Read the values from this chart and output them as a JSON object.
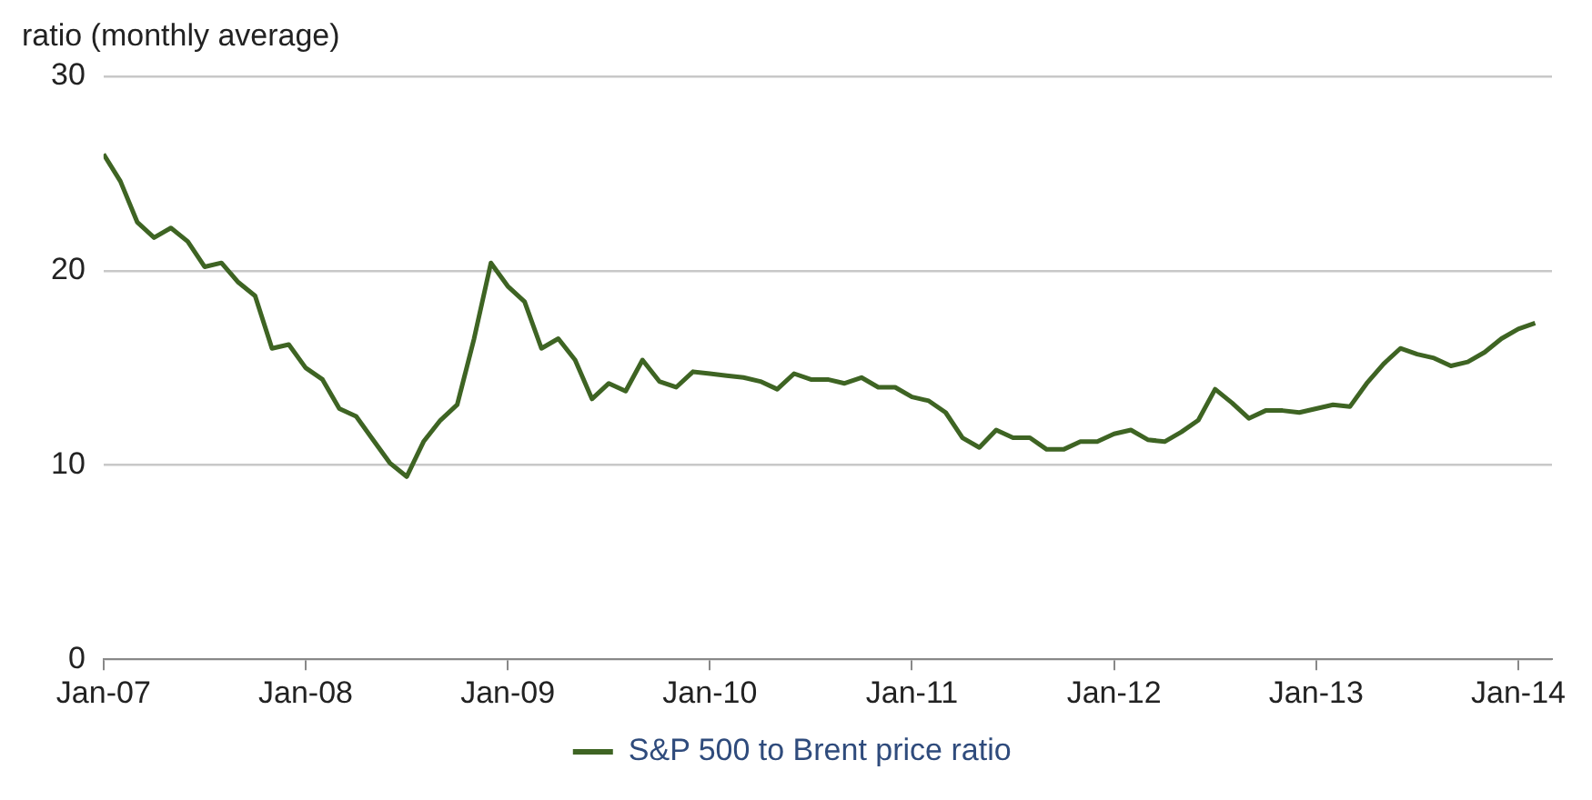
{
  "chart_data": {
    "type": "line",
    "ylabel": "ratio (monthly average)",
    "x": [
      "2007-01",
      "2007-02",
      "2007-03",
      "2007-04",
      "2007-05",
      "2007-06",
      "2007-07",
      "2007-08",
      "2007-09",
      "2007-10",
      "2007-11",
      "2007-12",
      "2008-01",
      "2008-02",
      "2008-03",
      "2008-04",
      "2008-05",
      "2008-06",
      "2008-07",
      "2008-08",
      "2008-09",
      "2008-10",
      "2008-11",
      "2008-12",
      "2009-01",
      "2009-02",
      "2009-03",
      "2009-04",
      "2009-05",
      "2009-06",
      "2009-07",
      "2009-08",
      "2009-09",
      "2009-10",
      "2009-11",
      "2009-12",
      "2010-01",
      "2010-02",
      "2010-03",
      "2010-04",
      "2010-05",
      "2010-06",
      "2010-07",
      "2010-08",
      "2010-09",
      "2010-10",
      "2010-11",
      "2010-12",
      "2011-01",
      "2011-02",
      "2011-03",
      "2011-04",
      "2011-05",
      "2011-06",
      "2011-07",
      "2011-08",
      "2011-09",
      "2011-10",
      "2011-11",
      "2011-12",
      "2012-01",
      "2012-02",
      "2012-03",
      "2012-04",
      "2012-05",
      "2012-06",
      "2012-07",
      "2012-08",
      "2012-09",
      "2012-10",
      "2012-11",
      "2012-12",
      "2013-01",
      "2013-02",
      "2013-03",
      "2013-04",
      "2013-05",
      "2013-06",
      "2013-07",
      "2013-08",
      "2013-09",
      "2013-10",
      "2013-11",
      "2013-12",
      "2014-01",
      "2014-02"
    ],
    "series": [
      {
        "name": "S&P 500 to Brent price ratio",
        "color": "#3e6423",
        "values": [
          26.0,
          24.6,
          22.5,
          21.7,
          22.2,
          21.5,
          20.2,
          20.4,
          19.4,
          18.7,
          16.0,
          16.2,
          15.0,
          14.4,
          12.9,
          12.5,
          11.3,
          10.1,
          9.4,
          11.2,
          12.3,
          13.1,
          16.5,
          20.4,
          19.2,
          18.4,
          16.0,
          16.5,
          15.4,
          13.4,
          14.2,
          13.8,
          15.4,
          14.3,
          14.0,
          14.8,
          14.7,
          14.6,
          14.5,
          14.3,
          13.9,
          14.7,
          14.4,
          14.4,
          14.2,
          14.5,
          14.0,
          14.0,
          13.5,
          13.3,
          12.7,
          11.4,
          10.9,
          11.8,
          11.4,
          11.4,
          10.8,
          10.8,
          11.2,
          11.2,
          11.6,
          11.8,
          11.3,
          11.2,
          11.7,
          12.3,
          13.9,
          13.2,
          12.4,
          12.8,
          12.8,
          12.7,
          12.9,
          13.1,
          13.0,
          14.2,
          15.2,
          16.0,
          15.7,
          15.5,
          15.1,
          15.3,
          15.8,
          16.5,
          17.0,
          17.3
        ]
      }
    ],
    "xlim": [
      "2007-01",
      "2014-03"
    ],
    "xticks": [
      {
        "value": "2007-01",
        "label": "Jan-07"
      },
      {
        "value": "2008-01",
        "label": "Jan-08"
      },
      {
        "value": "2009-01",
        "label": "Jan-09"
      },
      {
        "value": "2010-01",
        "label": "Jan-10"
      },
      {
        "value": "2011-01",
        "label": "Jan-11"
      },
      {
        "value": "2012-01",
        "label": "Jan-12"
      },
      {
        "value": "2013-01",
        "label": "Jan-13"
      },
      {
        "value": "2014-01",
        "label": "Jan-14"
      }
    ],
    "ylim": [
      0,
      30
    ],
    "yticks": [
      0,
      10,
      20,
      30
    ],
    "grid": "y",
    "legend": "bottom",
    "marker": "none",
    "line_style": "solid"
  }
}
